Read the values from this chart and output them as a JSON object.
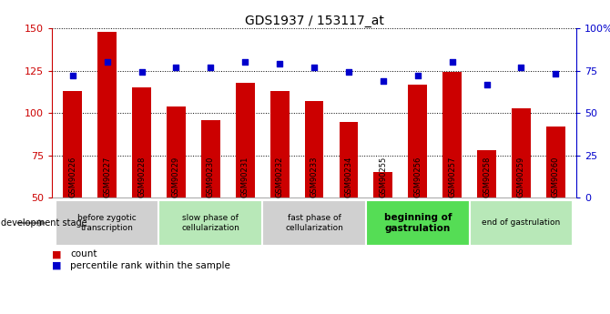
{
  "title": "GDS1937 / 153117_at",
  "samples": [
    "GSM90226",
    "GSM90227",
    "GSM90228",
    "GSM90229",
    "GSM90230",
    "GSM90231",
    "GSM90232",
    "GSM90233",
    "GSM90234",
    "GSM90255",
    "GSM90256",
    "GSM90257",
    "GSM90258",
    "GSM90259",
    "GSM90260"
  ],
  "counts": [
    113,
    148,
    115,
    104,
    96,
    118,
    113,
    107,
    95,
    65,
    117,
    124,
    78,
    103,
    92
  ],
  "percentile_ranks": [
    72,
    80,
    74,
    77,
    77,
    80,
    79,
    77,
    74,
    69,
    72,
    80,
    67,
    77,
    73
  ],
  "ylim_left": [
    50,
    150
  ],
  "ylim_right": [
    0,
    100
  ],
  "yticks_left": [
    50,
    75,
    100,
    125,
    150
  ],
  "yticks_right": [
    0,
    25,
    50,
    75,
    100
  ],
  "ytick_labels_right": [
    "0",
    "25",
    "50",
    "75",
    "100%"
  ],
  "bar_color": "#cc0000",
  "dot_color": "#0000cc",
  "stages": [
    {
      "label": "before zygotic\ntranscription",
      "start": 0,
      "end": 3,
      "color": "#d0d0d0",
      "bold": false
    },
    {
      "label": "slow phase of\ncellularization",
      "start": 3,
      "end": 6,
      "color": "#b8e8b8",
      "bold": false
    },
    {
      "label": "fast phase of\ncellularization",
      "start": 6,
      "end": 9,
      "color": "#d0d0d0",
      "bold": false
    },
    {
      "label": "beginning of\ngastrulation",
      "start": 9,
      "end": 12,
      "color": "#55dd55",
      "bold": true
    },
    {
      "label": "end of gastrulation",
      "start": 12,
      "end": 15,
      "color": "#b8e8b8",
      "bold": false
    }
  ],
  "xtick_bg_color": "#c8c8c8",
  "dev_stage_label": "development stage",
  "legend_count_label": "count",
  "legend_pct_label": "percentile rank within the sample",
  "background_color": "#ffffff"
}
